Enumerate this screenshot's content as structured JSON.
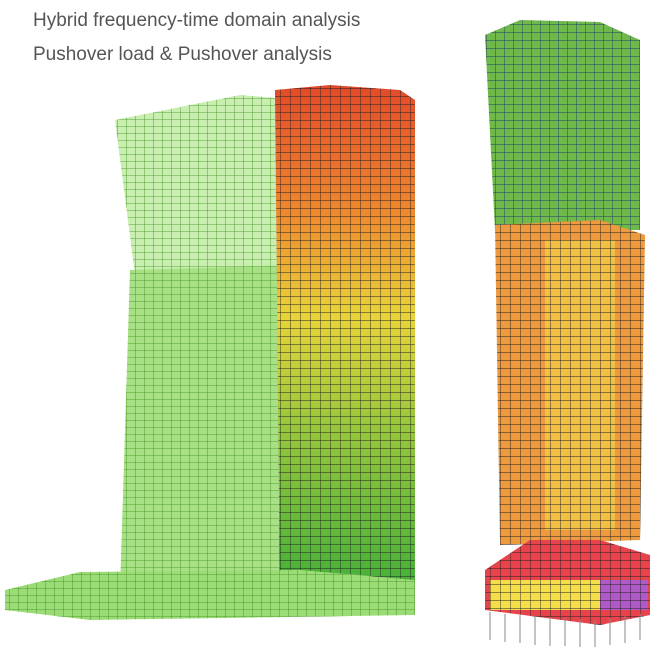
{
  "captions": [
    "Hybrid frequency-time domain analysis",
    "Pushover load & Pushover analysis"
  ]
}
